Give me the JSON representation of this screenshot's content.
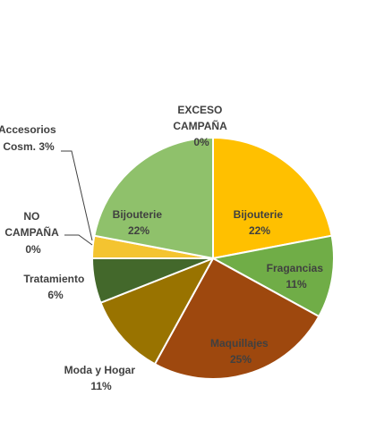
{
  "chart_data": {
    "type": "pie",
    "slices": [
      {
        "name": "Bijouterie",
        "value": 22,
        "label": "22%",
        "color": "#FFC000"
      },
      {
        "name": "Fragancias",
        "value": 11,
        "label": "11%",
        "color": "#70AD47"
      },
      {
        "name": "Maquillajes",
        "value": 25,
        "label": "25%",
        "color": "#9E480E"
      },
      {
        "name": "Moda y Hogar",
        "value": 11,
        "label": "11%",
        "color": "#997300"
      },
      {
        "name": "Tratamiento",
        "value": 6,
        "label": "6%",
        "color": "#43682B"
      },
      {
        "name": "NO CAMPAÑA",
        "value": 0,
        "label": "0%",
        "color": "#5B9BD5"
      },
      {
        "name": "Accesorios Cosm.",
        "value": 3,
        "label": "3%",
        "color": "#F4C430"
      },
      {
        "name": "Bijouterie",
        "value": 22,
        "label": "22%",
        "color": "#8FC16B"
      },
      {
        "name": "EXCESO CAMPAÑA",
        "value": 0,
        "label": "0%",
        "color": "#4472C4"
      }
    ],
    "labels": {
      "bijouterie_right": [
        "Bijouterie",
        "22%"
      ],
      "fragancias": [
        "Fragancias",
        "11%"
      ],
      "maquillajes": [
        "Maquillajes",
        "25%"
      ],
      "moda": [
        "Moda y Hogar",
        "11%"
      ],
      "tratamiento": [
        "Tratamiento",
        "6%"
      ],
      "no_campana": [
        "NO",
        "CAMPAÑA",
        "0%"
      ],
      "accesorios": [
        "Accesorios",
        "Cosm. 3%"
      ],
      "bijouterie_left": [
        "Bijouterie",
        "22%"
      ],
      "exceso": [
        "EXCESO",
        "CAMPAÑA",
        "0%"
      ]
    }
  }
}
